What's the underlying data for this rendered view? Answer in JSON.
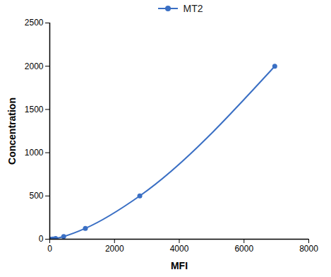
{
  "chart_data": {
    "type": "line",
    "x_label": "MFI",
    "y_label": "Concentration",
    "x": [
      30,
      100,
      180,
      430,
      1100,
      2780,
      6950
    ],
    "series": [
      {
        "name": "MT2",
        "color": "#3a6fc4",
        "values": [
          0,
          2,
          8,
          31,
          125,
          500,
          2000
        ],
        "marker": "circle",
        "line_style": "solid"
      }
    ],
    "xlim": [
      0,
      8000
    ],
    "xticks": [
      0,
      2000,
      4000,
      6000,
      8000
    ],
    "ylim": [
      0,
      2500
    ],
    "yticks": [
      0,
      500,
      1000,
      1500,
      2000,
      2500
    ],
    "legend": "top",
    "grid": false
  }
}
